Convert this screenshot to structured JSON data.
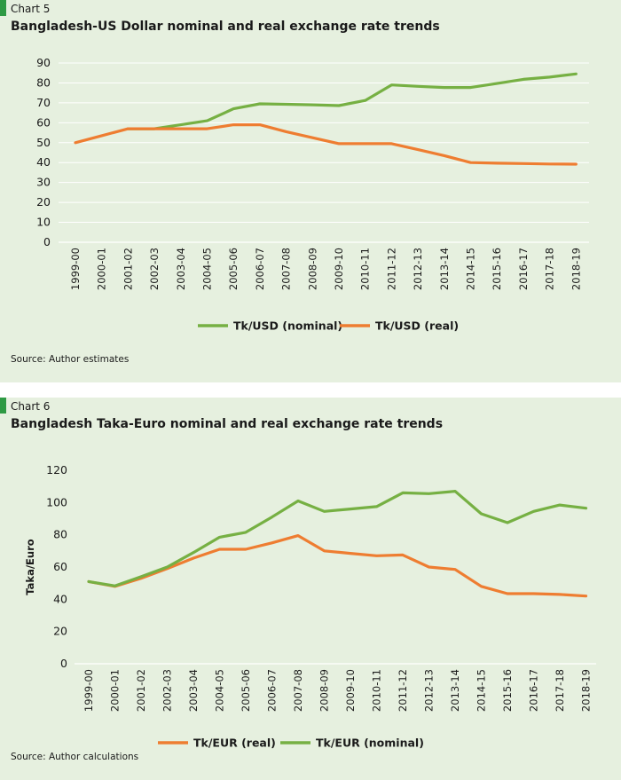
{
  "colors": {
    "background": "#e6f0df",
    "accent": "#2e9a44",
    "nominal": "#76b043",
    "real": "#ee7d31"
  },
  "chart5": {
    "label": "Chart 5",
    "title": "Bangladesh-US Dollar nominal and real exchange rate trends",
    "source": "Source: Author estimates"
  },
  "chart6": {
    "label": "Chart 6",
    "title": "Bangladesh Taka-Euro nominal and real exchange rate trends",
    "source": "Source: Author calculations"
  },
  "chart_data": [
    {
      "type": "line",
      "title": "Bangladesh-US Dollar nominal and real exchange rate trends",
      "xlabel": "",
      "ylabel": "",
      "categories": [
        "1999-00",
        "2000-01",
        "2001-02",
        "2002-03",
        "2003-04",
        "2004-05",
        "2005-06",
        "2006-07",
        "2007-08",
        "2008-09",
        "2009-10",
        "2010-11",
        "2011-12",
        "2012-13",
        "2013-14",
        "2014-15",
        "2015-16",
        "2016-17",
        "2017-18",
        "2018-19"
      ],
      "yticks": [
        0,
        10,
        20,
        30,
        40,
        50,
        60,
        70,
        80,
        90
      ],
      "ylim": [
        0,
        90
      ],
      "grid": true,
      "legend": "bottom",
      "series": [
        {
          "name": "Tk/USD (nominal)",
          "color": "#76b043",
          "values": [
            null,
            null,
            57,
            57,
            59,
            61,
            67,
            69.5,
            69.3,
            69,
            68.6,
            71.2,
            79,
            78.3,
            77.7,
            77.7,
            79.7,
            81.8,
            82.9,
            84.5
          ]
        },
        {
          "name": "Tk/USD (real)",
          "color": "#ee7d31",
          "values": [
            50,
            53.5,
            57,
            57,
            57,
            57,
            59,
            59,
            55.5,
            52.5,
            49.5,
            49.5,
            49.5,
            46.5,
            43.5,
            40,
            39.7,
            39.5,
            39.3,
            39.2
          ]
        }
      ]
    },
    {
      "type": "line",
      "title": "Bangladesh Taka-Euro nominal and real exchange rate trends",
      "xlabel": "",
      "ylabel": "Taka/Euro",
      "categories": [
        "1999-00",
        "2000-01",
        "2001-02",
        "2002-03",
        "2003-04",
        "2004-05",
        "2005-06",
        "2006-07",
        "2007-08",
        "2008-09",
        "2009-10",
        "2010-11",
        "2011-12",
        "2012-13",
        "2013-14",
        "2014-15",
        "2015-16",
        "2016-17",
        "2017-18",
        "2018-19"
      ],
      "yticks": [
        0,
        20,
        40,
        60,
        80,
        100,
        120
      ],
      "ylim": [
        0,
        120
      ],
      "grid": false,
      "legend": "bottom",
      "series": [
        {
          "name": "Tk/EUR (real)",
          "color": "#ee7d31",
          "values": [
            51,
            48,
            53,
            59,
            65.5,
            71,
            71,
            75,
            79.5,
            70,
            68.5,
            67,
            67.5,
            60,
            58.5,
            48,
            43.5,
            43.5,
            43,
            42
          ]
        },
        {
          "name": "Tk/EUR (nominal)",
          "color": "#76b043",
          "values": [
            51,
            48.3,
            54,
            60,
            69,
            78.5,
            81.5,
            91,
            101,
            94.5,
            96,
            97.5,
            106,
            105.5,
            107,
            93,
            87.5,
            94.5,
            98.5,
            96.5
          ]
        }
      ]
    }
  ]
}
